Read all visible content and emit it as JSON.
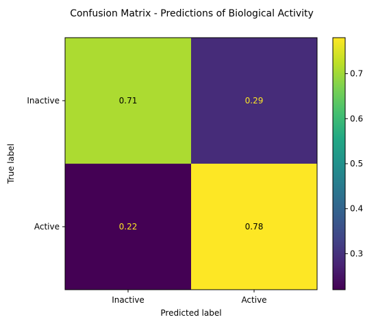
{
  "chart_data": {
    "type": "heatmap",
    "title": "Confusion Matrix - Predictions of Biological Activity",
    "xlabel": "Predicted label",
    "ylabel": "True label",
    "x_categories": [
      "Inactive",
      "Active"
    ],
    "y_categories": [
      "Inactive",
      "Active"
    ],
    "values": [
      [
        0.71,
        0.29
      ],
      [
        0.22,
        0.78
      ]
    ],
    "value_labels": [
      [
        "0.71",
        "0.29"
      ],
      [
        "0.22",
        "0.78"
      ]
    ],
    "colormap": "viridis",
    "colorbar": {
      "range": [
        0.22,
        0.78
      ],
      "ticks": [
        0.3,
        0.4,
        0.5,
        0.6,
        0.7
      ],
      "tick_labels": [
        "0.3",
        "0.4",
        "0.5",
        "0.6",
        "0.7"
      ]
    },
    "text_colors": {
      "dark_cell": "#fde725",
      "light_cell": "#000000"
    }
  }
}
